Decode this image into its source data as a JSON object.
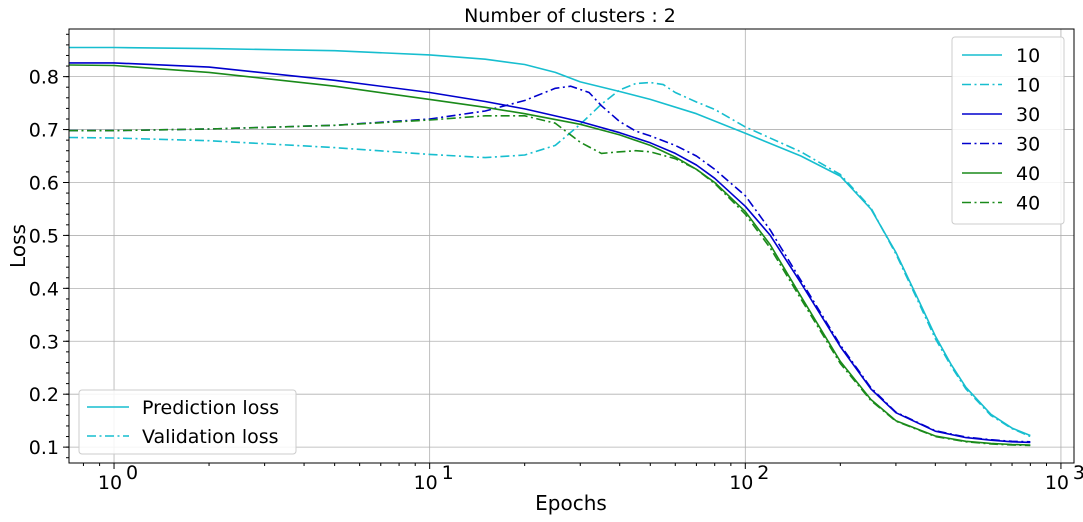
{
  "chart_data": {
    "type": "line",
    "title": "Number of clusters : 2",
    "xlabel": "Epochs",
    "ylabel": "Loss",
    "xscale": "log",
    "xlim": [
      0.72,
      1100
    ],
    "ylim": [
      0.07,
      0.89
    ],
    "x_ticks": [
      1,
      10,
      100,
      1000
    ],
    "x_tick_labels": [
      "10",
      "10",
      "10",
      "10"
    ],
    "x_tick_exponents": [
      "0",
      "1",
      "2",
      "3"
    ],
    "y_ticks": [
      0.1,
      0.2,
      0.3,
      0.4,
      0.5,
      0.6,
      0.7,
      0.8
    ],
    "y_tick_labels": [
      "0.1",
      "0.2",
      "0.3",
      "0.4",
      "0.5",
      "0.6",
      "0.7",
      "0.8"
    ],
    "grid": true,
    "legend_placement": "top-right",
    "style_legend_placement": "bottom-left",
    "colors": {
      "10": "#17becf",
      "30": "#0000cd",
      "40": "#1a8a1a"
    },
    "series": [
      {
        "name": "10",
        "color": "#17becf",
        "style": "solid",
        "x": [
          0.72,
          1,
          2,
          5,
          10,
          15,
          20,
          25,
          30,
          40,
          50,
          70,
          100,
          150,
          200,
          250,
          300,
          350,
          400,
          450,
          500,
          600,
          700,
          800
        ],
        "y": [
          0.855,
          0.855,
          0.853,
          0.849,
          0.841,
          0.833,
          0.823,
          0.808,
          0.79,
          0.772,
          0.757,
          0.73,
          0.693,
          0.65,
          0.612,
          0.55,
          0.468,
          0.384,
          0.31,
          0.255,
          0.213,
          0.162,
          0.136,
          0.122
        ]
      },
      {
        "name": "10",
        "color": "#17becf",
        "style": "dashdot",
        "x": [
          0.72,
          1,
          2,
          5,
          10,
          15,
          20,
          25,
          30,
          35,
          40,
          45,
          50,
          55,
          60,
          70,
          80,
          100,
          150,
          200,
          250,
          300,
          350,
          400,
          450,
          500,
          600,
          700,
          800
        ],
        "y": [
          0.685,
          0.684,
          0.679,
          0.666,
          0.653,
          0.647,
          0.652,
          0.67,
          0.71,
          0.748,
          0.775,
          0.787,
          0.789,
          0.785,
          0.77,
          0.752,
          0.738,
          0.705,
          0.658,
          0.615,
          0.552,
          0.465,
          0.38,
          0.305,
          0.252,
          0.21,
          0.16,
          0.135,
          0.12
        ]
      },
      {
        "name": "30",
        "color": "#0000cd",
        "style": "solid",
        "x": [
          0.72,
          1,
          2,
          5,
          10,
          15,
          20,
          30,
          40,
          50,
          60,
          70,
          80,
          100,
          120,
          150,
          200,
          250,
          300,
          400,
          500,
          600,
          700,
          800
        ],
        "y": [
          0.826,
          0.826,
          0.818,
          0.793,
          0.77,
          0.753,
          0.739,
          0.715,
          0.694,
          0.675,
          0.655,
          0.633,
          0.608,
          0.555,
          0.5,
          0.41,
          0.29,
          0.21,
          0.165,
          0.13,
          0.118,
          0.113,
          0.11,
          0.109
        ]
      },
      {
        "name": "30",
        "color": "#0000cd",
        "style": "dashdot",
        "x": [
          0.72,
          1,
          2,
          5,
          10,
          15,
          20,
          25,
          28,
          32,
          35,
          40,
          45,
          50,
          60,
          70,
          80,
          100,
          120,
          150,
          200,
          250,
          300,
          400,
          500,
          600,
          700,
          800
        ],
        "y": [
          0.698,
          0.698,
          0.701,
          0.708,
          0.72,
          0.735,
          0.755,
          0.778,
          0.782,
          0.77,
          0.745,
          0.715,
          0.697,
          0.688,
          0.67,
          0.65,
          0.625,
          0.575,
          0.51,
          0.415,
          0.293,
          0.212,
          0.166,
          0.131,
          0.119,
          0.114,
          0.111,
          0.11
        ]
      },
      {
        "name": "40",
        "color": "#1a8a1a",
        "style": "solid",
        "x": [
          0.72,
          1,
          2,
          5,
          10,
          15,
          20,
          30,
          40,
          50,
          60,
          70,
          80,
          100,
          120,
          150,
          200,
          250,
          300,
          400,
          500,
          600,
          700,
          800
        ],
        "y": [
          0.822,
          0.821,
          0.808,
          0.782,
          0.757,
          0.742,
          0.73,
          0.71,
          0.69,
          0.67,
          0.648,
          0.625,
          0.6,
          0.545,
          0.482,
          0.385,
          0.262,
          0.19,
          0.15,
          0.121,
          0.111,
          0.107,
          0.105,
          0.104
        ]
      },
      {
        "name": "40",
        "color": "#1a8a1a",
        "style": "dashdot",
        "x": [
          0.72,
          1,
          2,
          5,
          10,
          15,
          20,
          25,
          30,
          35,
          40,
          45,
          50,
          60,
          70,
          80,
          100,
          120,
          150,
          200,
          250,
          300,
          400,
          500,
          600,
          700,
          800
        ],
        "y": [
          0.698,
          0.698,
          0.701,
          0.708,
          0.718,
          0.726,
          0.726,
          0.712,
          0.676,
          0.655,
          0.658,
          0.66,
          0.658,
          0.645,
          0.625,
          0.598,
          0.54,
          0.476,
          0.38,
          0.258,
          0.188,
          0.149,
          0.12,
          0.11,
          0.106,
          0.104,
          0.103
        ]
      }
    ],
    "style_legend": [
      {
        "label": "Prediction loss",
        "style": "solid",
        "color": "#17becf"
      },
      {
        "label": "Validation loss",
        "style": "dashdot",
        "color": "#17becf"
      }
    ]
  }
}
